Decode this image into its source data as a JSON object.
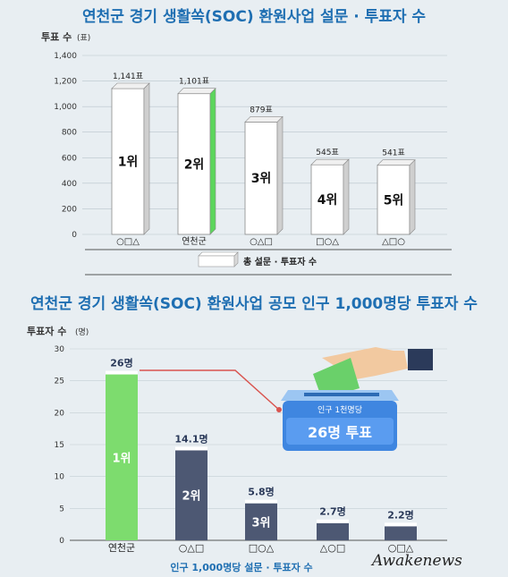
{
  "chart_data": [
    {
      "type": "bar",
      "title": "연천군 경기 생활쏙(SOC) 환원사업 설문 · 투표자  수",
      "ylabel": "투표 수",
      "yunit": "(표)",
      "ylim": [
        0,
        1400
      ],
      "yticks": [
        0,
        200,
        400,
        600,
        800,
        1000,
        1200,
        1400
      ],
      "grid": true,
      "categories": [
        "○□△",
        "연천군",
        "○△□",
        "□○△",
        "△□○"
      ],
      "values": [
        1141,
        1101,
        879,
        545,
        541
      ],
      "value_labels": [
        "1,141표",
        "1,101표",
        "879표",
        "545표",
        "541표"
      ],
      "rank_labels": [
        "1위",
        "2위",
        "3위",
        "4위",
        "5위"
      ],
      "highlight_category": "연천군",
      "colors": {
        "bar": "#ffffff",
        "highlight": "#5cd65c",
        "title": "#1f6fb2"
      },
      "legend": {
        "label": "총 설문 · 투표자 수",
        "position": "bottom-center"
      }
    },
    {
      "type": "bar",
      "title": "연천군 경기 생활쏙(SOC) 환원사업 공모 인구 1,000명당 투표자 수",
      "ylabel": "투표자 수",
      "yunit": "(명)",
      "ylim": [
        0,
        30
      ],
      "yticks": [
        0,
        5,
        10,
        15,
        20,
        25,
        30
      ],
      "grid": true,
      "categories": [
        "연천군",
        "○△□",
        "□○△",
        "△○□",
        "○□△"
      ],
      "values": [
        26,
        14.1,
        5.8,
        2.7,
        2.2
      ],
      "value_labels": [
        "26명",
        "14.1명",
        "5.8명",
        "2.7명",
        "2.2명"
      ],
      "rank_labels": [
        "1위",
        "2위",
        "3위",
        "",
        ""
      ],
      "highlight_category": "연천군",
      "colors": {
        "bar": "#4d5873",
        "highlight": "#7ddc6e",
        "title": "#1f6fb2"
      },
      "xlabel": "인구 1,000명당 설문 · 투표자 수",
      "callout": {
        "line1": "인구 1천명당",
        "line2": "26명 투표"
      }
    }
  ],
  "watermark": "Awakenews"
}
